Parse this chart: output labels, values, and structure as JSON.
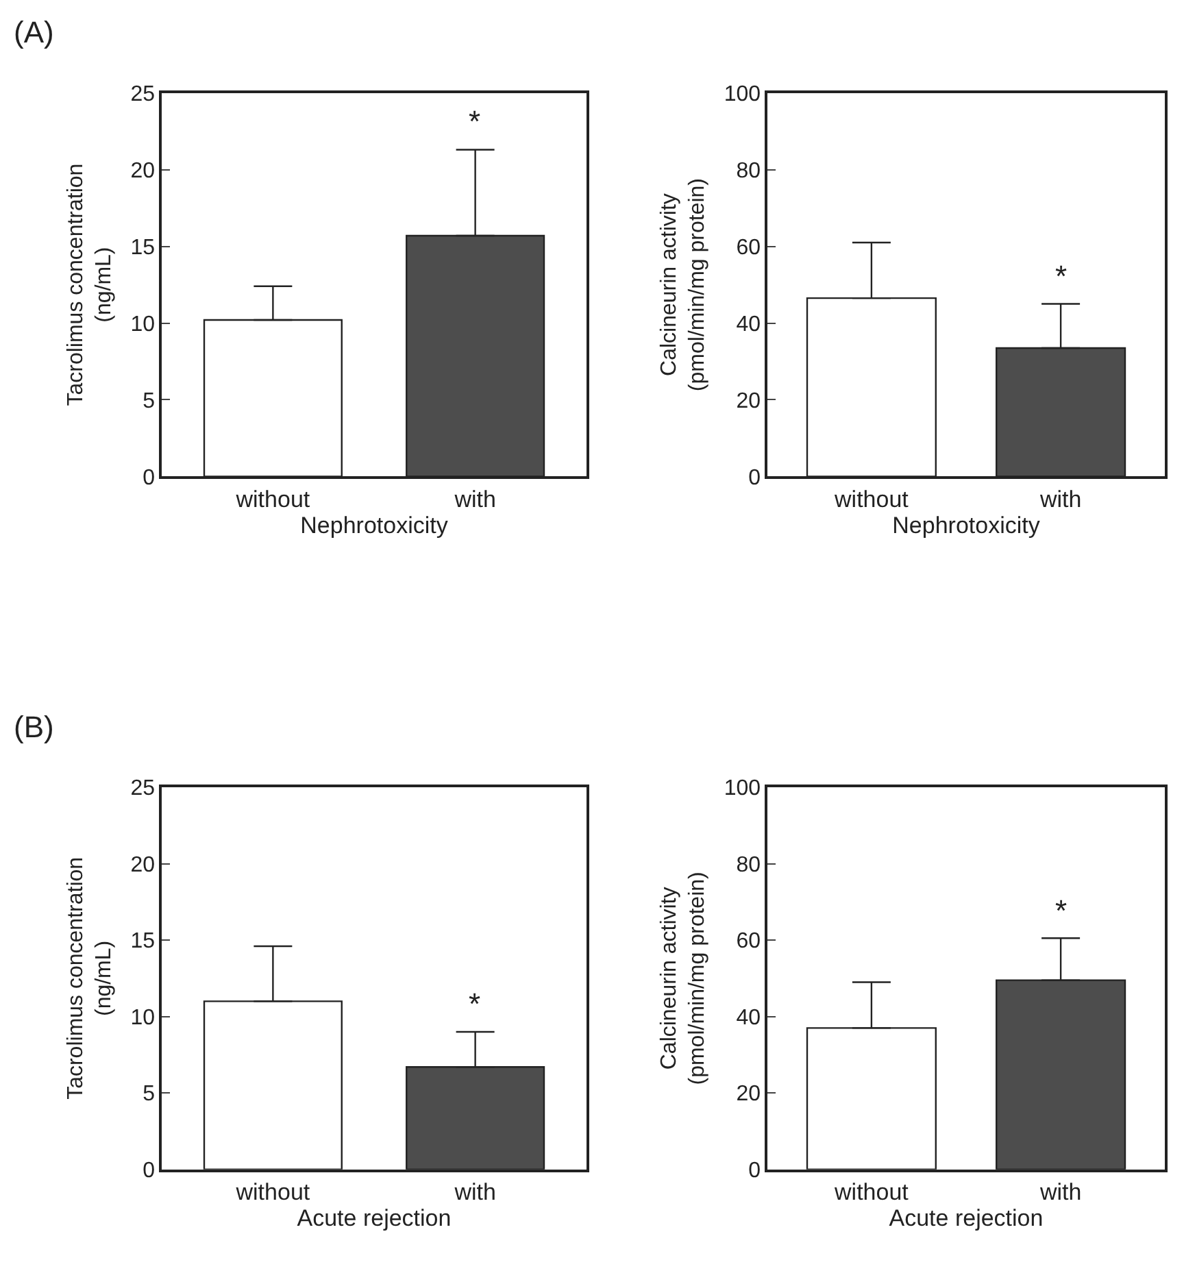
{
  "chart_data": [
    {
      "type": "bar",
      "title": "(A)",
      "categories": [
        "without",
        "with"
      ],
      "values": [
        10.2,
        15.7
      ],
      "colors": [
        "#ffffff",
        "#4d4d4d"
      ],
      "errors": [
        [
          10.2,
          12.4
        ],
        [
          15.7,
          21.3
        ]
      ],
      "xlabel": "Nephrotoxicity",
      "ylabel": "Tacrolimus concentration\n(ng/mL)",
      "ylim": [
        0,
        25
      ],
      "yticks": [
        0,
        5,
        10,
        15,
        20,
        25
      ],
      "annotations": [
        "*"
      ]
    },
    {
      "type": "bar",
      "categories": [
        "without",
        "with"
      ],
      "values": [
        46.5,
        33.5
      ],
      "colors": [
        "#ffffff",
        "#4d4d4d"
      ],
      "errors": [
        [
          46.5,
          61
        ],
        [
          33.5,
          45
        ]
      ],
      "xlabel": "Nephrotoxicity",
      "ylabel": "Calcineurin activity\n(pmol/min/mg protein)",
      "ylim": [
        0,
        100
      ],
      "yticks": [
        0,
        20,
        40,
        60,
        80,
        100
      ],
      "annotations": [
        "*"
      ]
    },
    {
      "type": "bar",
      "title": "(B)",
      "categories": [
        "without",
        "with"
      ],
      "values": [
        11.0,
        6.7
      ],
      "colors": [
        "#ffffff",
        "#4d4d4d"
      ],
      "errors": [
        [
          11.0,
          14.6
        ],
        [
          6.7,
          9.0
        ]
      ],
      "xlabel": "Acute rejection",
      "ylabel": "Tacrolimus concentration\n(ng/mL)",
      "ylim": [
        0,
        25
      ],
      "yticks": [
        0,
        5,
        10,
        15,
        20,
        25
      ],
      "annotations": [
        "*"
      ]
    },
    {
      "type": "bar",
      "categories": [
        "without",
        "with"
      ],
      "values": [
        37,
        49.5
      ],
      "colors": [
        "#ffffff",
        "#4d4d4d"
      ],
      "errors": [
        [
          37,
          49
        ],
        [
          49.5,
          60.5
        ]
      ],
      "xlabel": "Acute rejection",
      "ylabel": "Calcineurin activity\n(pmol/min/mg protein)",
      "ylim": [
        0,
        100
      ],
      "yticks": [
        0,
        20,
        40,
        60,
        80,
        100
      ],
      "annotations": [
        "*"
      ]
    }
  ]
}
